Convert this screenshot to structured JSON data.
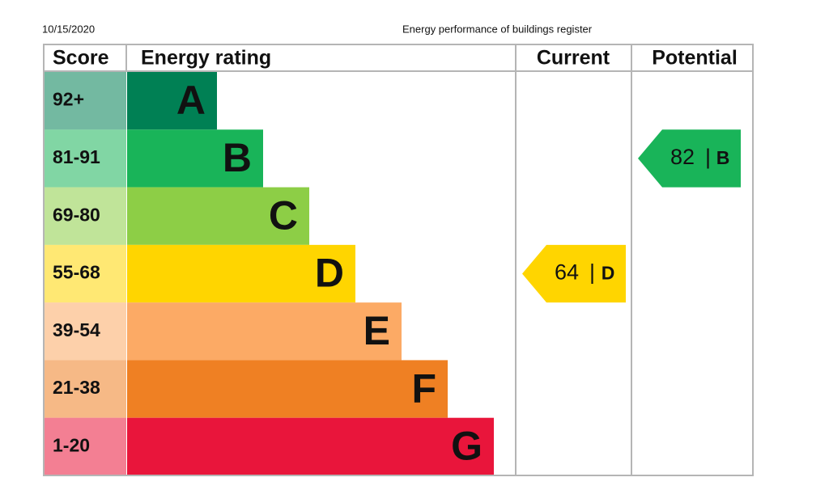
{
  "header": {
    "date": "10/15/2020",
    "title": "Energy performance of buildings register"
  },
  "table": {
    "columns": [
      "Score",
      "Energy rating",
      "Current",
      "Potential"
    ],
    "bands": [
      {
        "score": "92+",
        "rating": "A",
        "color": "#008054"
      },
      {
        "score": "81-91",
        "rating": "B",
        "color": "#19b459"
      },
      {
        "score": "69-80",
        "rating": "C",
        "color": "#8dce46"
      },
      {
        "score": "55-68",
        "rating": "D",
        "color": "#ffd500"
      },
      {
        "score": "39-54",
        "rating": "E",
        "color": "#fcaa65"
      },
      {
        "score": "21-38",
        "rating": "F",
        "color": "#ef8023"
      },
      {
        "score": "1-20",
        "rating": "G",
        "color": "#e9153b"
      }
    ],
    "separator": "|",
    "current": {
      "value": 64,
      "rating": "D"
    },
    "potential": {
      "value": 82,
      "rating": "B"
    }
  }
}
